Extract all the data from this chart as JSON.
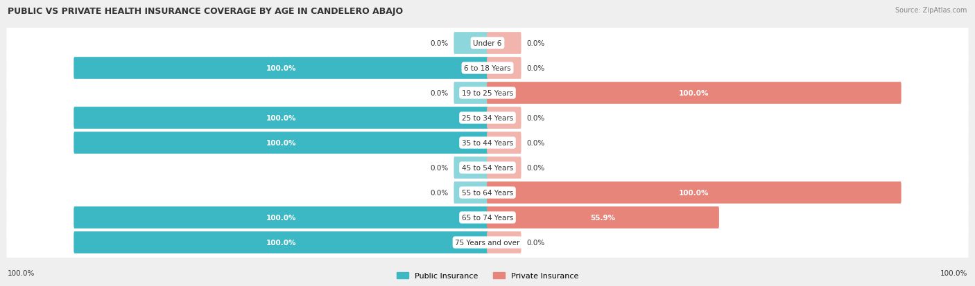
{
  "title": "PUBLIC VS PRIVATE HEALTH INSURANCE COVERAGE BY AGE IN CANDELERO ABAJO",
  "source": "Source: ZipAtlas.com",
  "categories": [
    "Under 6",
    "6 to 18 Years",
    "19 to 25 Years",
    "25 to 34 Years",
    "35 to 44 Years",
    "45 to 54 Years",
    "55 to 64 Years",
    "65 to 74 Years",
    "75 Years and over"
  ],
  "public_values": [
    0.0,
    100.0,
    0.0,
    100.0,
    100.0,
    0.0,
    0.0,
    100.0,
    100.0
  ],
  "private_values": [
    0.0,
    0.0,
    100.0,
    0.0,
    0.0,
    0.0,
    100.0,
    55.9,
    0.0
  ],
  "public_color": "#3BB8C3",
  "private_color": "#E8857A",
  "public_stub_color": "#8DD6DC",
  "private_stub_color": "#F2B5AE",
  "public_label": "Public Insurance",
  "private_label": "Private Insurance",
  "bg_color": "#EFEFEF",
  "bar_bg_color": "#FFFFFF",
  "title_color": "#333333",
  "label_color": "#333333",
  "bottom_labels": [
    "100.0%",
    "100.0%"
  ],
  "figsize": [
    14.06,
    4.14
  ],
  "dpi": 100
}
